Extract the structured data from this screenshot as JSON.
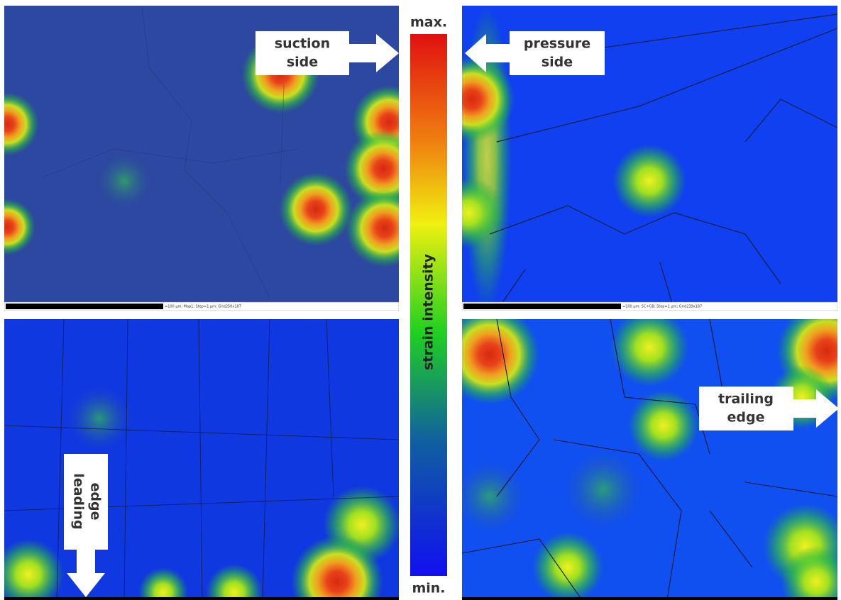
{
  "panels": {
    "top_left": {
      "arrow_label": [
        "suction",
        "side"
      ],
      "scale_bar": "=100 µm; Map1; Step=1 µm; Grid250x187"
    },
    "top_right": {
      "arrow_label": [
        "pressure",
        "side"
      ],
      "scale_bar": "=100 µm; SC+GB; Step=1 µm; Grid239x187"
    },
    "bottom_left": {
      "arrow_label": [
        "leading",
        "edge"
      ]
    },
    "bottom_right": {
      "arrow_label": [
        "trailing",
        "edge"
      ]
    }
  },
  "colorbar": {
    "max_label": "max.",
    "min_label": "min.",
    "title": "strain intensity"
  }
}
